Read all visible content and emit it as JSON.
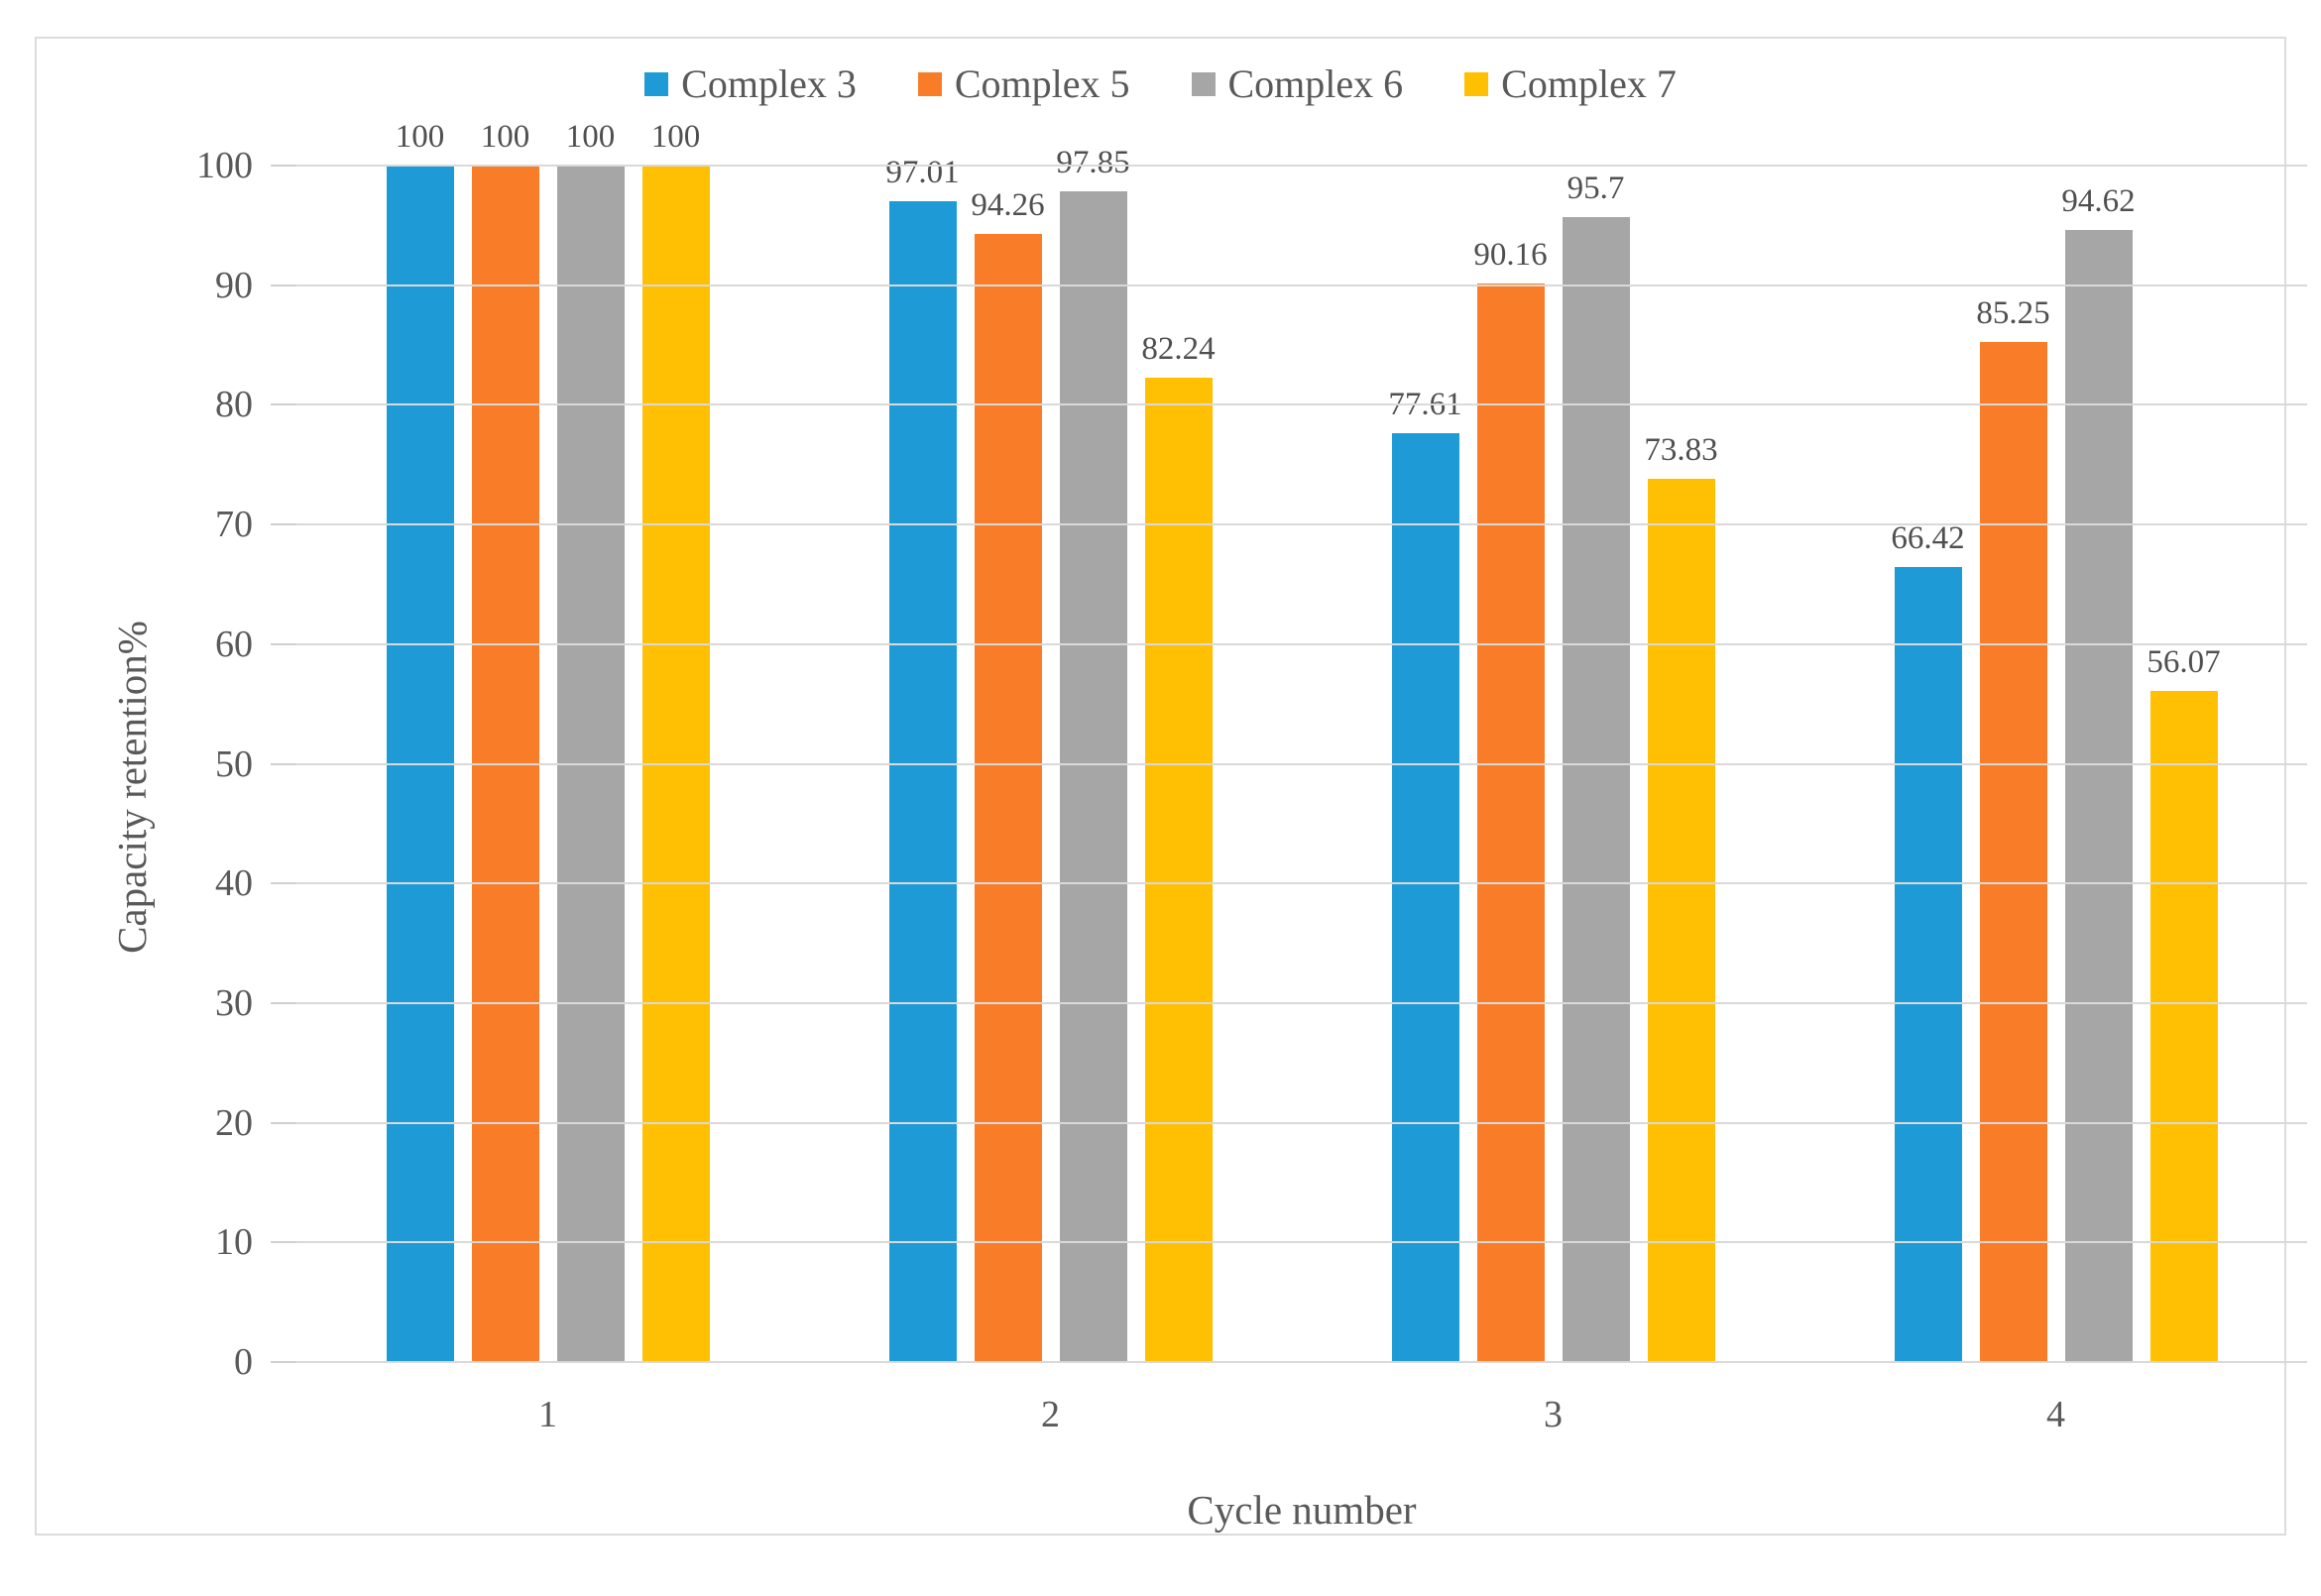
{
  "chart_data": {
    "type": "bar",
    "title": "",
    "xlabel": "Cycle number",
    "ylabel": "Capacity retention%",
    "ylim": [
      0,
      100
    ],
    "ytick_step": 10,
    "yticks": [
      "0",
      "10",
      "20",
      "30",
      "40",
      "50",
      "60",
      "70",
      "80",
      "90",
      "100"
    ],
    "grid": true,
    "legend_position": "top",
    "categories": [
      "1",
      "2",
      "3",
      "4"
    ],
    "series": [
      {
        "name": "Complex 3",
        "color": "#1e9bd7",
        "values": [
          100,
          97.01,
          77.61,
          66.42
        ],
        "labels": [
          "100",
          "97.01",
          "77.61",
          "66.42"
        ]
      },
      {
        "name": "Complex 5",
        "color": "#f97d28",
        "values": [
          100,
          94.26,
          90.16,
          85.25
        ],
        "labels": [
          "100",
          "94.26",
          "90.16",
          "85.25"
        ]
      },
      {
        "name": "Complex 6",
        "color": "#a6a6a6",
        "values": [
          100,
          97.85,
          95.7,
          94.62
        ],
        "labels": [
          "100",
          "97.85",
          "95.7",
          "94.62"
        ]
      },
      {
        "name": "Complex 7",
        "color": "#ffc003",
        "values": [
          100,
          82.24,
          73.83,
          56.07
        ],
        "labels": [
          "100",
          "82.24",
          "73.83",
          "56.07"
        ]
      }
    ],
    "colors": {
      "gridline": "#d9d9d9",
      "tick": "#cfcfcf",
      "text": "#595959",
      "data_label": "#4f4f4f",
      "frame_border": "#dcdcdc"
    }
  }
}
